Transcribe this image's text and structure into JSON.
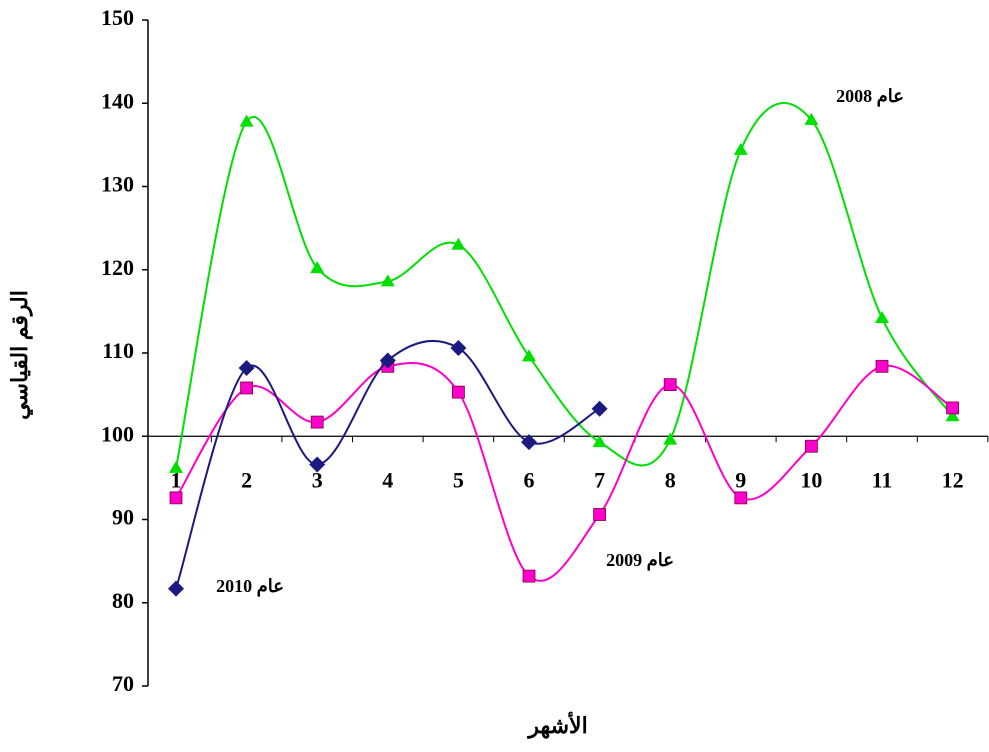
{
  "chart_data": {
    "type": "line",
    "x_label": "الأشهر",
    "y_label": "الرقم القياسي",
    "categories": [
      "1",
      "2",
      "3",
      "4",
      "5",
      "6",
      "7",
      "8",
      "9",
      "10",
      "11",
      "12"
    ],
    "series": [
      {
        "name": "عام 2008",
        "color": "#00e000",
        "marker": "triangle",
        "values": [
          96.2,
          137.8,
          120.2,
          118.6,
          123,
          109.6,
          99.3,
          99.6,
          134.4,
          138,
          114.2,
          102.4
        ]
      },
      {
        "name": "عام 2009",
        "color": "#ff00cc",
        "marker": "square",
        "values": [
          92.6,
          105.8,
          101.7,
          108.4,
          105.3,
          83.2,
          90.6,
          106.2,
          92.6,
          98.8,
          108.4,
          103.4
        ]
      },
      {
        "name": "عام 2010",
        "color": "#1a1a80",
        "marker": "diamond",
        "values": [
          81.7,
          108.2,
          96.6,
          109.1,
          110.6,
          99.3,
          103.3,
          null,
          null,
          null,
          null,
          null
        ]
      }
    ],
    "ylim": [
      70,
      150
    ],
    "yticks": [
      70,
      80,
      90,
      100,
      110,
      120,
      130,
      140,
      150
    ],
    "baseline": 100
  }
}
